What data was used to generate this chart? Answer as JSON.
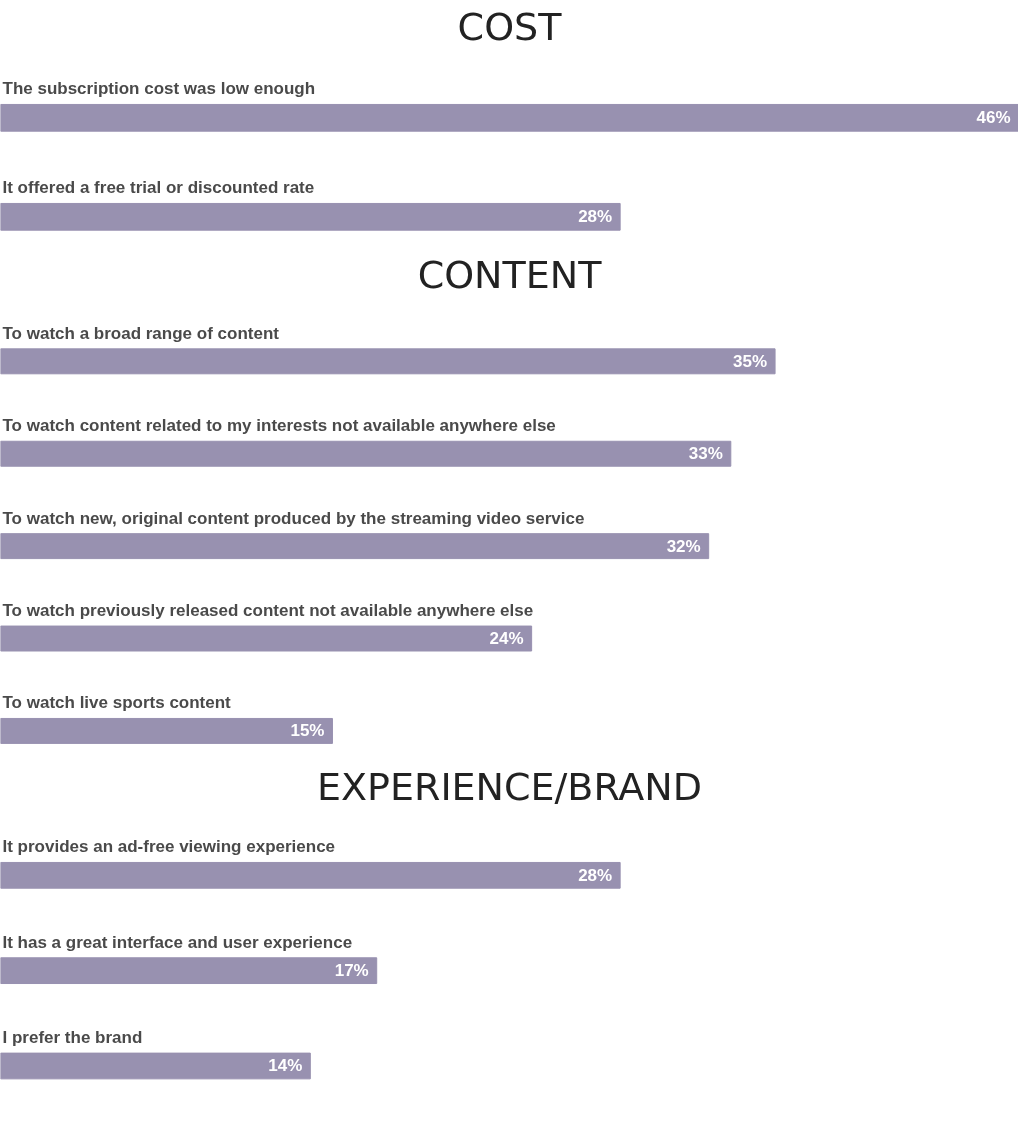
{
  "chart_data": [
    {
      "type": "bar",
      "orientation": "horizontal",
      "title": "COST",
      "categories": [
        "The subscription cost was low enough",
        "It offered a free trial or discounted rate"
      ],
      "values": [
        46,
        28
      ],
      "value_labels": [
        "46%",
        "28%"
      ],
      "color": "#9891b0",
      "tick_labels": false
    },
    {
      "type": "bar",
      "orientation": "horizontal",
      "title": "CONTENT",
      "categories": [
        "To watch a broad range of content",
        "To watch content related to my interests not available anywhere else",
        "To watch new, original content produced by the streaming video service",
        "To watch previously released content not available anywhere else",
        "To watch live sports content"
      ],
      "values": [
        35,
        33,
        32,
        24,
        15
      ],
      "value_labels": [
        "35%",
        "33%",
        "32%",
        "24%",
        "15%"
      ],
      "color": "#9891b0",
      "tick_labels": false
    },
    {
      "type": "bar",
      "orientation": "horizontal",
      "title": "EXPERIENCE/BRAND",
      "categories": [
        "It provides an ad-free viewing experience",
        "It has a great interface and user experience",
        "I prefer the brand"
      ],
      "values": [
        28,
        17,
        14
      ],
      "value_labels": [
        "28%",
        "17%",
        "14%"
      ],
      "color": "#9891b0",
      "tick_labels": false
    }
  ]
}
